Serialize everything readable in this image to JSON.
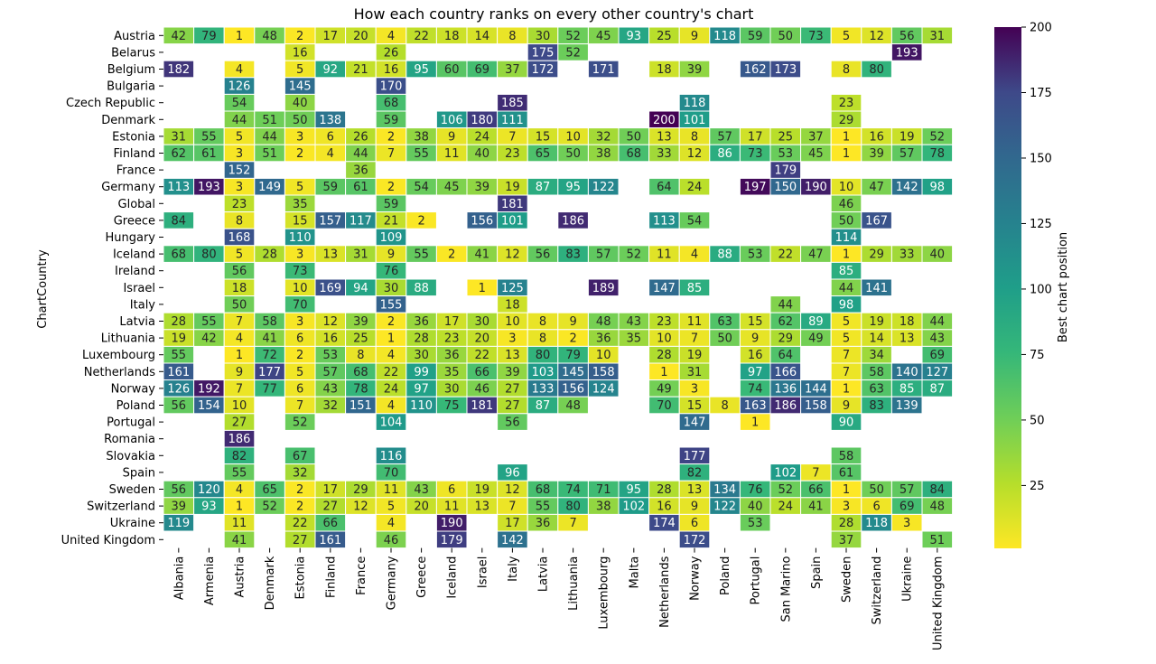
{
  "chart_data": {
    "type": "heatmap",
    "title": "How each country ranks on every other country's chart",
    "ylabel": "ChartCountry",
    "xlabel": "",
    "colorbar_label": "Best chart position",
    "colorbar_range": [
      1,
      200
    ],
    "colorbar_ticks": [
      25,
      50,
      75,
      100,
      125,
      150,
      175,
      200
    ],
    "colormap": "viridis_r",
    "columns": [
      "Albania",
      "Armenia",
      "Austria",
      "Denmark",
      "Estonia",
      "Finland",
      "France",
      "Germany",
      "Greece",
      "Iceland",
      "Israel",
      "Italy",
      "Latvia",
      "Lithuania",
      "Luxembourg",
      "Malta",
      "Netherlands",
      "Norway",
      "Poland",
      "Portugal",
      "San Marino",
      "Spain",
      "Sweden",
      "Switzerland",
      "Ukraine",
      "United Kingdom"
    ],
    "rows": [
      "Austria",
      "Belarus",
      "Belgium",
      "Bulgaria",
      "Czech Republic",
      "Denmark",
      "Estonia",
      "Finland",
      "France",
      "Germany",
      "Global",
      "Greece",
      "Hungary",
      "Iceland",
      "Ireland",
      "Israel",
      "Italy",
      "Latvia",
      "Lithuania",
      "Luxembourg",
      "Netherlands",
      "Norway",
      "Poland",
      "Portugal",
      "Romania",
      "Slovakia",
      "Spain",
      "Sweden",
      "Switzerland",
      "Ukraine",
      "United Kingdom"
    ],
    "values": [
      [
        42,
        79,
        1,
        48,
        2,
        17,
        20,
        4,
        22,
        18,
        14,
        8,
        30,
        52,
        45,
        93,
        25,
        9,
        118,
        59,
        50,
        73,
        5,
        12,
        56,
        31
      ],
      [
        null,
        null,
        null,
        null,
        16,
        null,
        null,
        26,
        null,
        null,
        null,
        null,
        175,
        52,
        null,
        null,
        null,
        null,
        null,
        null,
        null,
        null,
        null,
        null,
        193,
        null
      ],
      [
        182,
        null,
        4,
        null,
        5,
        92,
        21,
        16,
        95,
        60,
        69,
        37,
        172,
        null,
        171,
        null,
        18,
        39,
        null,
        162,
        173,
        null,
        8,
        80,
        null,
        null
      ],
      [
        null,
        null,
        126,
        null,
        145,
        null,
        null,
        170,
        null,
        null,
        null,
        null,
        null,
        null,
        null,
        null,
        null,
        null,
        null,
        null,
        null,
        null,
        null,
        null,
        null,
        null
      ],
      [
        null,
        null,
        54,
        null,
        40,
        null,
        null,
        68,
        null,
        null,
        null,
        185,
        null,
        null,
        null,
        null,
        null,
        118,
        null,
        null,
        null,
        null,
        23,
        null,
        null,
        null
      ],
      [
        null,
        null,
        44,
        51,
        50,
        138,
        null,
        59,
        null,
        106,
        180,
        111,
        null,
        null,
        null,
        null,
        200,
        101,
        null,
        null,
        null,
        null,
        29,
        null,
        null,
        null
      ],
      [
        31,
        55,
        5,
        44,
        3,
        6,
        26,
        2,
        38,
        9,
        24,
        7,
        15,
        10,
        32,
        50,
        13,
        8,
        57,
        17,
        25,
        37,
        1,
        16,
        19,
        52
      ],
      [
        62,
        61,
        3,
        51,
        2,
        4,
        44,
        7,
        55,
        11,
        40,
        23,
        65,
        50,
        38,
        68,
        33,
        12,
        86,
        73,
        53,
        45,
        1,
        39,
        57,
        78
      ],
      [
        null,
        null,
        152,
        null,
        null,
        null,
        36,
        null,
        null,
        null,
        null,
        null,
        null,
        null,
        null,
        null,
        null,
        null,
        null,
        null,
        179,
        null,
        null,
        null,
        null,
        null
      ],
      [
        113,
        193,
        3,
        149,
        5,
        59,
        61,
        2,
        54,
        45,
        39,
        19,
        87,
        95,
        122,
        null,
        64,
        24,
        null,
        197,
        150,
        190,
        10,
        47,
        142,
        98
      ],
      [
        null,
        null,
        23,
        null,
        35,
        null,
        null,
        59,
        null,
        null,
        null,
        181,
        null,
        null,
        null,
        null,
        null,
        null,
        null,
        null,
        null,
        null,
        46,
        null,
        null,
        null
      ],
      [
        84,
        null,
        8,
        null,
        15,
        157,
        117,
        21,
        2,
        null,
        156,
        101,
        null,
        186,
        null,
        null,
        113,
        54,
        null,
        null,
        null,
        null,
        50,
        167,
        null,
        null
      ],
      [
        null,
        null,
        168,
        null,
        110,
        null,
        null,
        109,
        null,
        null,
        null,
        null,
        null,
        null,
        null,
        null,
        null,
        null,
        null,
        null,
        null,
        null,
        114,
        null,
        null,
        null
      ],
      [
        68,
        80,
        5,
        28,
        3,
        13,
        31,
        9,
        55,
        2,
        41,
        12,
        56,
        83,
        57,
        52,
        11,
        4,
        88,
        53,
        22,
        47,
        1,
        29,
        33,
        40
      ],
      [
        null,
        null,
        56,
        null,
        73,
        null,
        null,
        76,
        null,
        null,
        null,
        null,
        null,
        null,
        null,
        null,
        null,
        null,
        null,
        null,
        null,
        null,
        85,
        null,
        null,
        null
      ],
      [
        null,
        null,
        18,
        null,
        10,
        169,
        94,
        30,
        88,
        null,
        1,
        125,
        null,
        null,
        189,
        null,
        147,
        85,
        null,
        null,
        null,
        null,
        44,
        141,
        null,
        null
      ],
      [
        null,
        null,
        50,
        null,
        70,
        null,
        null,
        155,
        null,
        null,
        null,
        18,
        null,
        null,
        null,
        null,
        null,
        null,
        null,
        null,
        44,
        null,
        98,
        null,
        null,
        null
      ],
      [
        28,
        55,
        7,
        58,
        3,
        12,
        39,
        2,
        36,
        17,
        30,
        10,
        8,
        9,
        48,
        43,
        23,
        11,
        63,
        15,
        62,
        89,
        5,
        19,
        18,
        44
      ],
      [
        19,
        42,
        4,
        41,
        6,
        16,
        25,
        1,
        28,
        23,
        20,
        3,
        8,
        2,
        36,
        35,
        10,
        7,
        50,
        9,
        29,
        49,
        5,
        14,
        13,
        43
      ],
      [
        55,
        null,
        1,
        72,
        2,
        53,
        8,
        4,
        30,
        36,
        22,
        13,
        80,
        79,
        10,
        null,
        28,
        19,
        null,
        16,
        64,
        null,
        7,
        34,
        null,
        69
      ],
      [
        161,
        null,
        9,
        177,
        5,
        57,
        68,
        22,
        99,
        35,
        66,
        39,
        103,
        145,
        158,
        null,
        1,
        31,
        null,
        97,
        166,
        null,
        7,
        58,
        140,
        127
      ],
      [
        126,
        192,
        7,
        77,
        6,
        43,
        78,
        24,
        97,
        30,
        46,
        27,
        133,
        156,
        124,
        null,
        49,
        3,
        null,
        74,
        136,
        144,
        1,
        63,
        85,
        87
      ],
      [
        56,
        154,
        10,
        null,
        7,
        32,
        151,
        4,
        110,
        75,
        181,
        27,
        87,
        48,
        null,
        null,
        70,
        15,
        8,
        163,
        186,
        158,
        9,
        83,
        139,
        null
      ],
      [
        null,
        null,
        27,
        null,
        52,
        null,
        null,
        104,
        null,
        null,
        null,
        56,
        null,
        null,
        null,
        null,
        null,
        147,
        null,
        1,
        null,
        null,
        90,
        null,
        null,
        null
      ],
      [
        null,
        null,
        186,
        null,
        null,
        null,
        null,
        null,
        null,
        null,
        null,
        null,
        null,
        null,
        null,
        null,
        null,
        null,
        null,
        null,
        null,
        null,
        null,
        null,
        null,
        null
      ],
      [
        null,
        null,
        82,
        null,
        67,
        null,
        null,
        116,
        null,
        null,
        null,
        null,
        null,
        null,
        null,
        null,
        null,
        177,
        null,
        null,
        null,
        null,
        58,
        null,
        null,
        null
      ],
      [
        null,
        null,
        55,
        null,
        32,
        null,
        null,
        70,
        null,
        null,
        null,
        96,
        null,
        null,
        null,
        null,
        null,
        82,
        null,
        null,
        102,
        7,
        61,
        null,
        null,
        null
      ],
      [
        56,
        120,
        4,
        65,
        2,
        17,
        29,
        11,
        43,
        6,
        19,
        12,
        68,
        74,
        71,
        95,
        28,
        13,
        134,
        76,
        52,
        66,
        1,
        50,
        57,
        84
      ],
      [
        39,
        93,
        1,
        52,
        2,
        27,
        12,
        5,
        20,
        11,
        13,
        7,
        55,
        80,
        38,
        102,
        16,
        9,
        122,
        40,
        24,
        41,
        3,
        6,
        69,
        48
      ],
      [
        119,
        null,
        11,
        null,
        22,
        66,
        null,
        4,
        null,
        190,
        null,
        17,
        36,
        7,
        null,
        null,
        174,
        6,
        null,
        53,
        null,
        null,
        28,
        118,
        3,
        null
      ],
      [
        null,
        null,
        41,
        null,
        27,
        161,
        null,
        46,
        null,
        179,
        null,
        142,
        null,
        null,
        null,
        null,
        null,
        172,
        null,
        null,
        null,
        null,
        37,
        null,
        null,
        51
      ]
    ]
  }
}
